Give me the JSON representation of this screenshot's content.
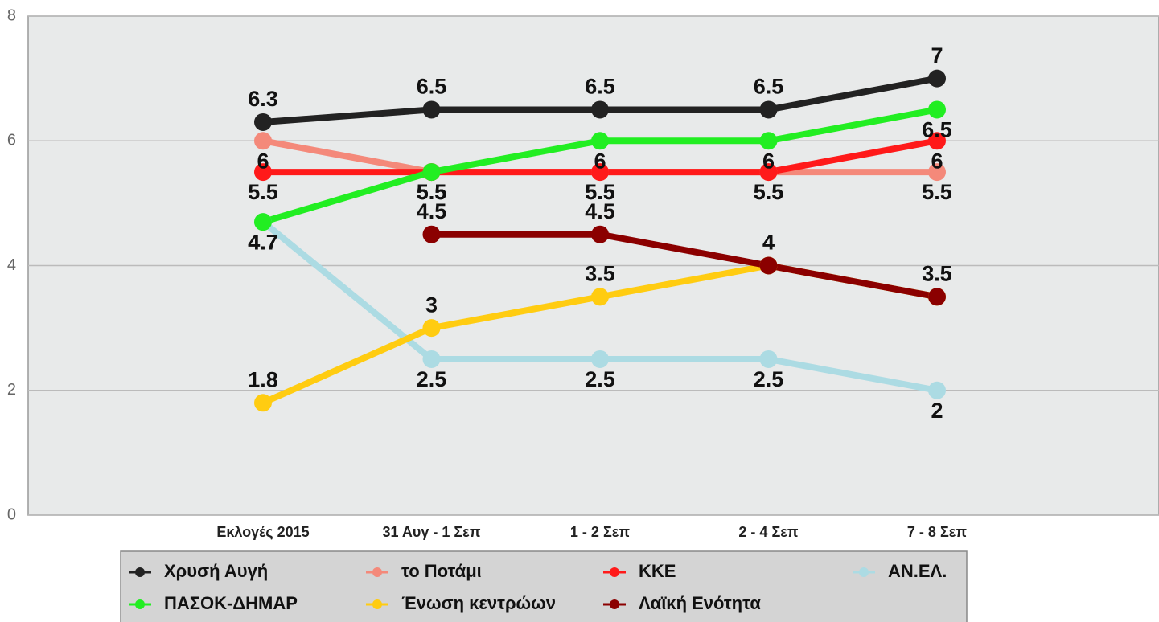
{
  "chart_data": {
    "type": "line",
    "categories": [
      "Εκλογές 2015",
      "31 Αυγ - 1 Σεπ",
      "1 - 2 Σεπ",
      "2 - 4 Σεπ",
      "7 - 8 Σεπ"
    ],
    "series": [
      {
        "name": "Χρυσή Αυγή",
        "color": "#222222",
        "values": [
          6.3,
          6.5,
          6.5,
          6.5,
          7
        ]
      },
      {
        "name": "το Ποτάμι",
        "color": "#f4897a",
        "values": [
          6,
          5.5,
          5.5,
          5.5,
          5.5
        ]
      },
      {
        "name": "ΚΚΕ",
        "color": "#ff1a1a",
        "values": [
          5.5,
          5.5,
          5.5,
          5.5,
          6
        ]
      },
      {
        "name": "ΑΝ.ΕΛ.",
        "color": "#acdbe3",
        "values": [
          4.7,
          2.5,
          2.5,
          2.5,
          2
        ]
      },
      {
        "name": "ΠΑΣΟΚ-ΔΗΜΑΡ",
        "color": "#22ee22",
        "values": [
          4.7,
          5.5,
          6,
          6,
          6.5
        ]
      },
      {
        "name": "Ένωση κεντρώων",
        "color": "#ffcc11",
        "values": [
          1.8,
          3,
          3.5,
          4,
          3.5
        ]
      },
      {
        "name": "Λαϊκή Ενότητα",
        "color": "#8b0000",
        "values": [
          null,
          4.5,
          4.5,
          4,
          3.5
        ]
      }
    ],
    "ylim": [
      0,
      8
    ],
    "yticks": [
      0,
      2,
      4,
      6,
      8
    ],
    "grid": true
  }
}
